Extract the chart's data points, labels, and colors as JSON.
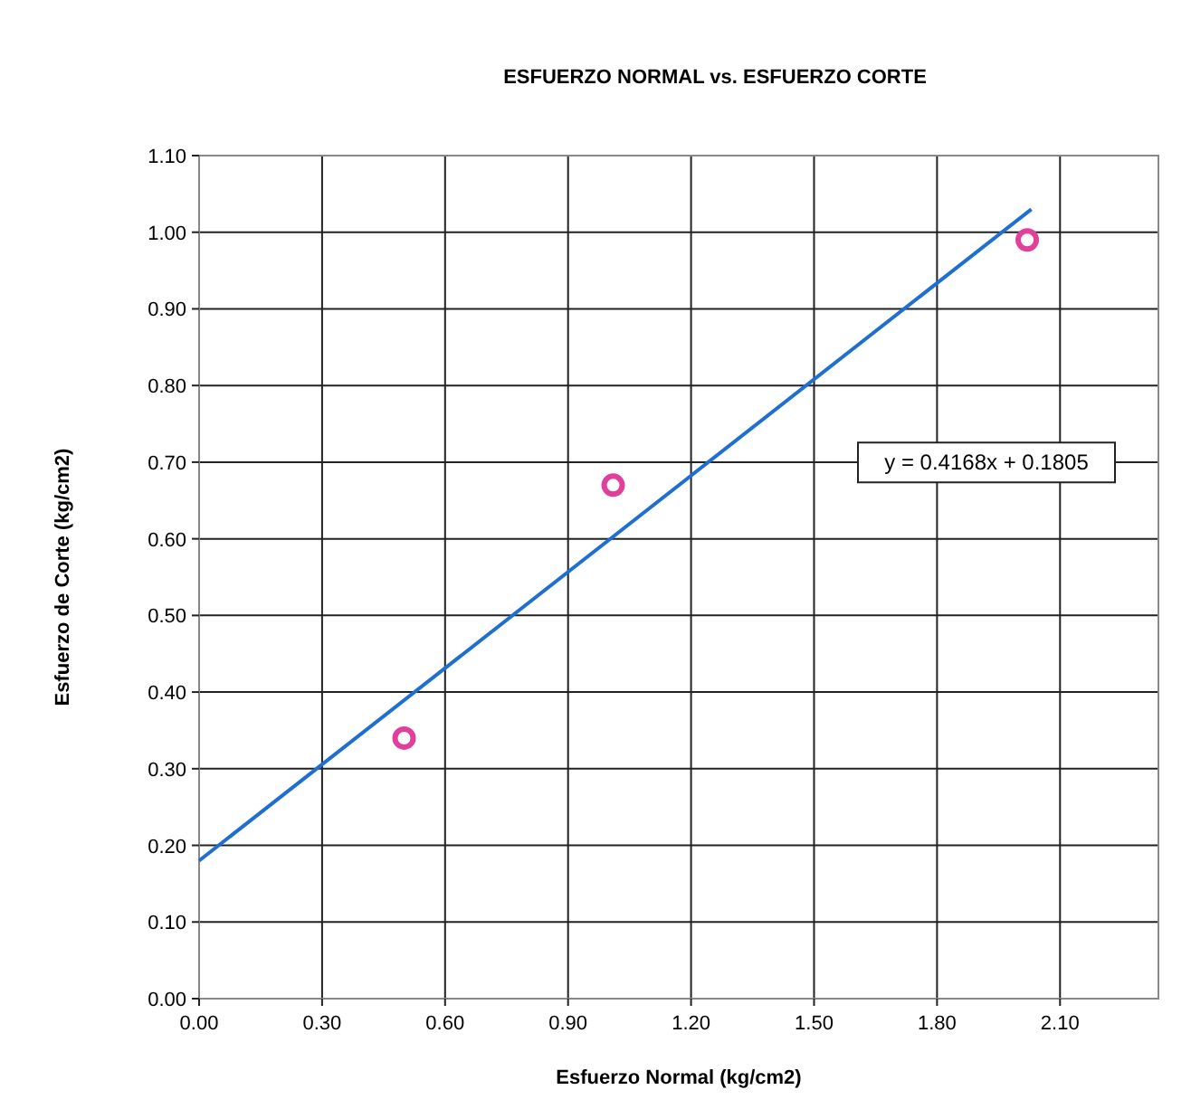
{
  "chart_data": {
    "type": "scatter",
    "title": "ESFUERZO  NORMAL vs. ESFUERZO  CORTE",
    "xlabel": "Esfuerzo Normal (kg/cm2)",
    "ylabel": "Esfuerzo de Corte (kg/cm2)",
    "xlim": [
      0,
      2.34
    ],
    "xticks": [
      {
        "value": 0,
        "label": "0.00"
      },
      {
        "value": 0.3,
        "label": "0.30"
      },
      {
        "value": 0.6,
        "label": "0.60"
      },
      {
        "value": 0.9,
        "label": "0.90"
      },
      {
        "value": 1.2,
        "label": "1.20"
      },
      {
        "value": 1.5,
        "label": "1.50"
      },
      {
        "value": 1.8,
        "label": "1.80"
      },
      {
        "value": 2.1,
        "label": "2.10"
      }
    ],
    "ylim": [
      0,
      1.1
    ],
    "yticks": [
      {
        "value": 0,
        "label": "0.00"
      },
      {
        "value": 0.1,
        "label": "0.10"
      },
      {
        "value": 0.2,
        "label": "0.20"
      },
      {
        "value": 0.3,
        "label": "0.30"
      },
      {
        "value": 0.4,
        "label": "0.40"
      },
      {
        "value": 0.5,
        "label": "0.50"
      },
      {
        "value": 0.6,
        "label": "0.60"
      },
      {
        "value": 0.7,
        "label": "0.70"
      },
      {
        "value": 0.8,
        "label": "0.80"
      },
      {
        "value": 0.9,
        "label": "0.90"
      },
      {
        "value": 1.0,
        "label": "1.00"
      },
      {
        "value": 1.1,
        "label": "1.10"
      }
    ],
    "grid": true,
    "series": [
      {
        "marker": "circle",
        "color": "#e0409a",
        "x": [
          0.5,
          1.01,
          2.02
        ],
        "values": [
          0.34,
          0.67,
          0.99
        ]
      },
      {
        "type": "line",
        "color": "#1f6fd0",
        "x": [
          0,
          2.03
        ],
        "values": [
          0.18,
          1.03
        ]
      }
    ],
    "annotations": [
      "y = 0.4168x + 0.1805"
    ]
  }
}
